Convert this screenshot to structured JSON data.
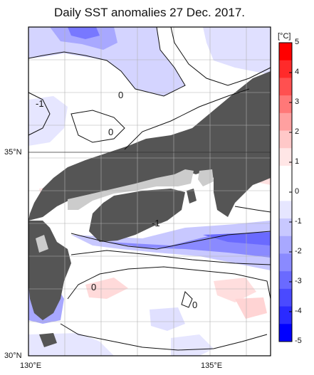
{
  "title": "Daily SST anomalies 27 Dec. 2017.",
  "map": {
    "lat_labels": [
      "35°N",
      "30°N"
    ],
    "lon_labels": [
      "130°E",
      "135°E"
    ],
    "contour_labels": [
      {
        "text": "-1"
      },
      {
        "text": "0"
      },
      {
        "text": "0"
      },
      {
        "text": "-1"
      },
      {
        "text": "0"
      },
      {
        "text": "0"
      }
    ]
  },
  "colorbar": {
    "unit": "[°C]",
    "tick_labels": [
      "5",
      "4",
      "3",
      "2",
      "1",
      "0",
      "-1",
      "-2",
      "-3",
      "-4",
      "-5"
    ],
    "colors": [
      "#ff0000",
      "#ff2a2a",
      "#ff5050",
      "#ff7878",
      "#ffa0a0",
      "#ffc8c8",
      "#ffe6e6",
      "#ffffff",
      "#ffffff",
      "#e6e6ff",
      "#c8c8ff",
      "#a8a8ff",
      "#8a8aff",
      "#6a6aff",
      "#4a4aff",
      "#2a2aff",
      "#0000ff"
    ],
    "land_color": "#555555",
    "lake_color": "#cccccc"
  }
}
